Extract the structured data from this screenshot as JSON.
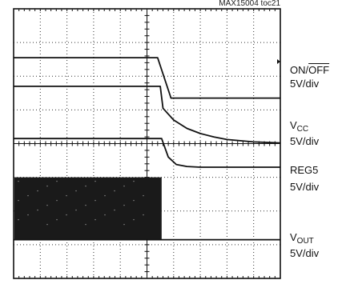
{
  "figure_id": "MAX15004 toc21",
  "channels": [
    {
      "name_plain": "ON/",
      "name_overline": "OFF",
      "scale": "5V/div"
    },
    {
      "name_main": "V",
      "name_sub": "CC",
      "scale": "5V/div"
    },
    {
      "name_plain": "REG5",
      "scale": "5V/div"
    },
    {
      "name_main": "V",
      "name_sub": "OUT",
      "scale": "5V/div"
    }
  ],
  "chart_data": {
    "type": "line",
    "grid": true,
    "divisions": {
      "x": 10,
      "y": 8
    },
    "x_range_div": [
      0,
      10
    ],
    "series": [
      {
        "name": "ON/OFF",
        "points": [
          [
            0,
            6.55
          ],
          [
            5.4,
            6.55
          ],
          [
            5.9,
            5.35
          ],
          [
            10,
            5.35
          ]
        ]
      },
      {
        "name": "VCC",
        "points": [
          [
            0,
            5.7
          ],
          [
            5.5,
            5.7
          ],
          [
            5.6,
            5.05
          ],
          [
            6.0,
            4.7
          ],
          [
            6.5,
            4.45
          ],
          [
            7.0,
            4.3
          ],
          [
            7.5,
            4.2
          ],
          [
            8.0,
            4.12
          ],
          [
            9.0,
            4.05
          ],
          [
            10,
            4.02
          ]
        ]
      },
      {
        "name": "REG5",
        "points": [
          [
            0,
            4.15
          ],
          [
            5.55,
            4.15
          ],
          [
            5.8,
            3.6
          ],
          [
            6.1,
            3.38
          ],
          [
            6.5,
            3.32
          ],
          [
            7.0,
            3.3
          ],
          [
            10,
            3.3
          ]
        ]
      },
      {
        "name": "VOUT",
        "points": [
          [
            0,
            1.15
          ],
          [
            5.55,
            1.15
          ],
          [
            10,
            1.15
          ]
        ],
        "switching_band": {
          "x_range": [
            0,
            5.55
          ],
          "y_range": [
            1.15,
            3.0
          ]
        }
      }
    ]
  }
}
